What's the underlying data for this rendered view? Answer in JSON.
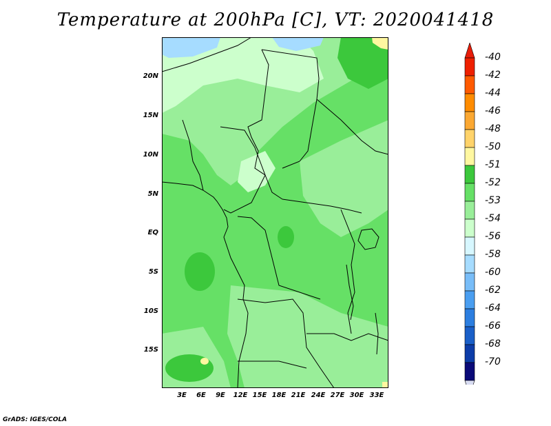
{
  "title": "Temperature at 200hPa [C], VT: 2020041418",
  "footer": "GrADS: IGES/COLA",
  "lat_labels": [
    "20N",
    "15N",
    "10N",
    "5N",
    "EQ",
    "5S",
    "10S",
    "15S"
  ],
  "lon_labels": [
    "3E",
    "6E",
    "9E",
    "12E",
    "15E",
    "18E",
    "21E",
    "24E",
    "27E",
    "30E",
    "33E"
  ],
  "colorbar": {
    "labels": [
      "-40",
      "-42",
      "-44",
      "-46",
      "-48",
      "-50",
      "-51",
      "-52",
      "-53",
      "-54",
      "-56",
      "-58",
      "-60",
      "-62",
      "-64",
      "-66",
      "-68",
      "-70"
    ],
    "colors": [
      "#ee2000",
      "#ff5a00",
      "#ff8c00",
      "#fba832",
      "#ffd36a",
      "#fff7a0",
      "#3cc83c",
      "#66e066",
      "#99ee99",
      "#ccffcc",
      "#d7f7ff",
      "#a6dcff",
      "#78bdf8",
      "#4a9ef0",
      "#2c7ee0",
      "#1a5fc8",
      "#0c3ca8",
      "#0a0a78"
    ],
    "top_arrow_color": "#e81d0a",
    "bottom_arrow_color": "#d8dcf2"
  },
  "map_extent": {
    "lon": [
      0,
      35
    ],
    "lat": [
      -20,
      24
    ]
  },
  "fill_colors": {
    "base": "#66e066",
    "light": "#99ee99",
    "dark": "#3cc83c",
    "pale": "#ccffcc",
    "sky": "#a6dcff",
    "yellow": "#fff7a0"
  }
}
